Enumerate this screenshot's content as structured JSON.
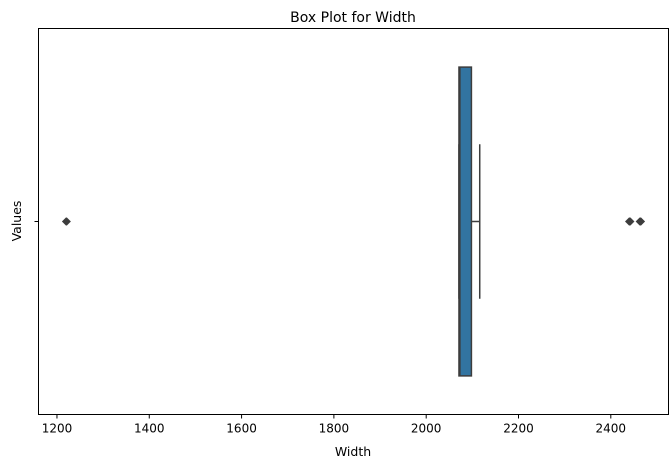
{
  "chart_data": {
    "type": "box",
    "title": "Box Plot for Width",
    "xlabel": "Width",
    "ylabel": "Values",
    "orientation": "horizontal",
    "xlim": [
      1160,
      2525
    ],
    "x_ticks": [
      1200,
      1400,
      1600,
      1800,
      2000,
      2200,
      2400
    ],
    "x_tick_labels": [
      "1200",
      "1400",
      "1600",
      "1800",
      "2000",
      "2200",
      "2400"
    ],
    "y_tick_labels": [
      ""
    ],
    "grid": false,
    "box": {
      "q1": 2071,
      "median": 2073,
      "q3": 2098,
      "whisker_low": 2071,
      "whisker_high": 2116,
      "outliers": [
        1220,
        1221,
        2440,
        2441,
        2442,
        2463,
        2464,
        2465
      ]
    },
    "colors": {
      "box_fill": "#3274a1",
      "line": "#3d3d3d",
      "axes": "#000000"
    }
  }
}
